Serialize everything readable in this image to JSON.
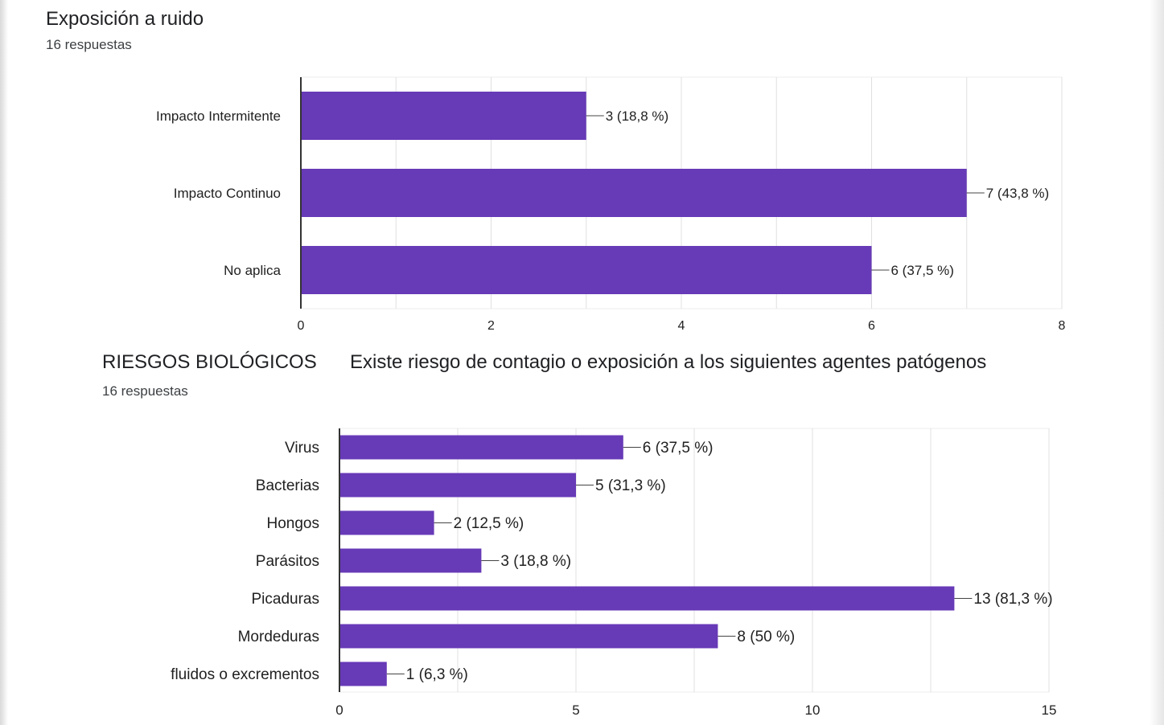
{
  "colors": {
    "bar": "#673ab7",
    "grid": "#e0e0e0",
    "axis": "#333333",
    "text": "#212121"
  },
  "chart1": {
    "title": "Exposición a ruido",
    "subtitle": "16 respuestas"
  },
  "chart2": {
    "title_part1": "RIESGOS BIOLÓGICOS",
    "title_part2": "Existe riesgo de contagio o exposición a los siguientes agentes patógenos",
    "subtitle": "16 respuestas"
  },
  "chart_data": [
    {
      "type": "bar",
      "orientation": "horizontal",
      "title": "Exposición a ruido",
      "subtitle": "16 respuestas",
      "categories": [
        "Impacto Intermitente",
        "Impacto Continuo",
        "No aplica"
      ],
      "values": [
        3,
        7,
        6
      ],
      "data_labels": [
        "3 (18,8 %)",
        "7 (43,8 %)",
        "6 (37,5 %)"
      ],
      "xlim": [
        0,
        8
      ],
      "xticks": [
        "0",
        "2",
        "4",
        "6",
        "8"
      ],
      "grid": true
    },
    {
      "type": "bar",
      "orientation": "horizontal",
      "title": "RIESGOS BIOLÓGICOS   Existe riesgo de contagio o exposición a los siguientes agentes patógenos",
      "subtitle": "16 respuestas",
      "categories": [
        "Virus",
        "Bacterias",
        "Hongos",
        "Parásitos",
        "Picaduras",
        "Mordeduras",
        "fluidos o excrementos"
      ],
      "values": [
        6,
        5,
        2,
        3,
        13,
        8,
        1
      ],
      "data_labels": [
        "6 (37,5 %)",
        "5 (31,3 %)",
        "2 (12,5 %)",
        "3 (18,8 %)",
        "13 (81,3 %)",
        "8 (50 %)",
        "1 (6,3 %)"
      ],
      "xlim": [
        0,
        15
      ],
      "xticks": [
        "0",
        "5",
        "10",
        "15"
      ],
      "grid": true
    }
  ]
}
